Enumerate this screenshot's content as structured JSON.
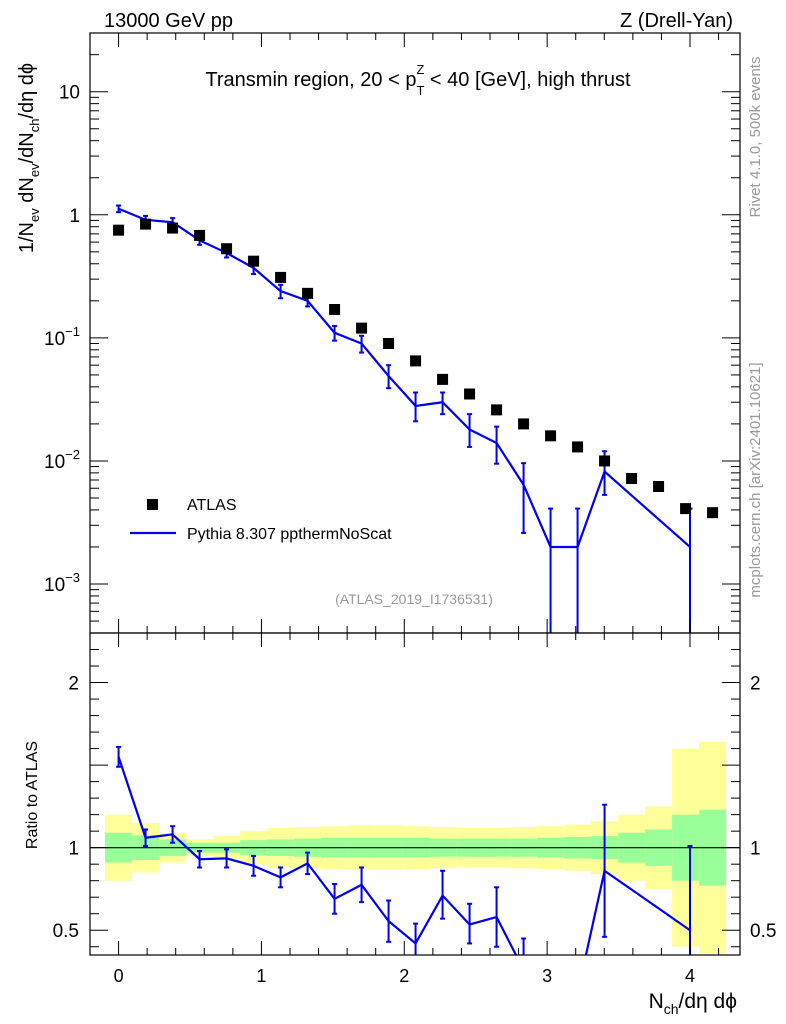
{
  "header": {
    "left": "13000 GeV pp",
    "right": "Z (Drell-Yan)"
  },
  "side": {
    "rivet": "Rivet 4.1.0,  500k events",
    "mcplots": "mcplots.cern.ch [arXiv:2401.10621]"
  },
  "colors": {
    "data": "#000000",
    "mc": "#0000ee",
    "band_inner": "#99ff99",
    "band_outer": "#ffff99",
    "analysis_label": "#999999"
  },
  "chart_data": {
    "type": "line",
    "title": "Transmin region, 20 < p_T^Z < 40 [GeV], high thrust",
    "title_parts": {
      "before": "Transmin region, 20 < p",
      "sub": "T",
      "sup": "Z",
      "after": " < 40 [GeV], high thrust"
    },
    "analysis": "(ATLAS_2019_I1736531)",
    "xlabel": "N_ch/dη dϕ",
    "xlabel_parts": {
      "main": "N",
      "sub": "ch",
      "rest": "/dη dϕ"
    },
    "ylabel": "1/N_ev dN_ev/dN_ch/dη dϕ",
    "ylabel_parts": [
      "1/N",
      "ev",
      " dN",
      "ev",
      "/dN",
      "ch",
      "/dη dϕ"
    ],
    "ratio_ylabel": "Ratio to ATLAS",
    "xlim": [
      -0.2,
      4.35
    ],
    "ylim": [
      0.0004,
      30
    ],
    "ratio_ylim": [
      0.35,
      2.3
    ],
    "xticks": [
      0,
      1,
      2,
      3,
      4
    ],
    "xtick_labels": [
      "0",
      "1",
      "2",
      "3",
      "4"
    ],
    "yticks": [
      {
        "v": 10,
        "base": "10",
        "exp": ""
      },
      {
        "v": 1,
        "base": "1",
        "exp": ""
      },
      {
        "v": 0.1,
        "base": "10",
        "exp": "−1"
      },
      {
        "v": 0.01,
        "base": "10",
        "exp": "−2"
      },
      {
        "v": 0.001,
        "base": "10",
        "exp": "−3"
      }
    ],
    "ratio_yticks": [
      {
        "v": 2,
        "label": "2"
      },
      {
        "v": 1,
        "label": "1"
      },
      {
        "v": 0.5,
        "label": "0.5"
      }
    ],
    "legend": [
      "ATLAS",
      "Pythia 8.307 ppthermNoScat"
    ],
    "legend_position": "lower-left",
    "bin_edges": [
      -0.095,
      0.095,
      0.284,
      0.473,
      0.662,
      0.851,
      1.04,
      1.229,
      1.418,
      1.607,
      1.796,
      1.985,
      2.174,
      2.363,
      2.552,
      2.741,
      2.93,
      3.119,
      3.308,
      3.497,
      3.686,
      3.875,
      4.064,
      4.253
    ],
    "series": [
      {
        "name": "ATLAS",
        "x": [
          0,
          0.189,
          0.378,
          0.567,
          0.756,
          0.945,
          1.134,
          1.323,
          1.512,
          1.701,
          1.89,
          2.079,
          2.268,
          2.457,
          2.646,
          2.835,
          3.024,
          3.213,
          3.402,
          3.591,
          3.78,
          3.969,
          4.158
        ],
        "y": [
          0.75,
          0.84,
          0.78,
          0.68,
          0.53,
          0.42,
          0.31,
          0.23,
          0.17,
          0.12,
          0.09,
          0.065,
          0.046,
          0.035,
          0.026,
          0.02,
          0.016,
          0.013,
          0.01,
          0.0072,
          0.0062,
          0.0041,
          0.0038
        ],
        "band_inner_rel": [
          0.09,
          0.075,
          0.05,
          0.03,
          0.03,
          0.045,
          0.05,
          0.055,
          0.06,
          0.06,
          0.06,
          0.06,
          0.055,
          0.055,
          0.055,
          0.055,
          0.06,
          0.065,
          0.07,
          0.09,
          0.11,
          0.2,
          0.23
        ],
        "band_outer_rel": [
          0.2,
          0.15,
          0.09,
          0.05,
          0.07,
          0.1,
          0.12,
          0.125,
          0.13,
          0.135,
          0.135,
          0.13,
          0.125,
          0.12,
          0.12,
          0.125,
          0.13,
          0.14,
          0.16,
          0.2,
          0.25,
          0.6,
          0.64
        ]
      },
      {
        "name": "Pythia 8.307 ppthermNoScat",
        "x": [
          0,
          0.189,
          0.378,
          0.567,
          0.756,
          0.945,
          1.134,
          1.323,
          1.512,
          1.701,
          1.89,
          2.079,
          2.268,
          2.457,
          2.646,
          2.835,
          3.024,
          3.213,
          3.402,
          4.0
        ],
        "y": [
          1.12,
          0.91,
          0.87,
          0.62,
          0.49,
          0.37,
          0.24,
          0.2,
          0.11,
          0.09,
          0.049,
          0.028,
          0.03,
          0.018,
          0.014,
          0.0064,
          0.002,
          0.002,
          0.0082,
          0.002
        ],
        "y_lo": [
          1.05,
          0.84,
          0.79,
          0.57,
          0.45,
          0.33,
          0.21,
          0.18,
          0.095,
          0.076,
          0.039,
          0.021,
          0.024,
          0.013,
          0.0095,
          0.0026,
          0.0001,
          0.0001,
          0.0053,
          0.0001
        ],
        "y_hi": [
          1.19,
          0.98,
          0.94,
          0.67,
          0.53,
          0.41,
          0.27,
          0.22,
          0.125,
          0.104,
          0.06,
          0.036,
          0.036,
          0.024,
          0.019,
          0.0096,
          0.0041,
          0.0041,
          0.012,
          0.0041
        ],
        "ratio_x": [
          0,
          0.189,
          0.378,
          0.567,
          0.756,
          0.945,
          1.134,
          1.323,
          1.512,
          1.701,
          1.89,
          2.079,
          2.268,
          2.457,
          2.646,
          2.835,
          3.024,
          3.213,
          3.402,
          4.0
        ],
        "ratio": [
          1.55,
          1.06,
          1.08,
          0.93,
          0.935,
          0.89,
          0.82,
          0.905,
          0.69,
          0.775,
          0.555,
          0.42,
          0.71,
          0.535,
          0.58,
          0.26,
          0.12,
          0.12,
          0.86,
          0.5
        ],
        "ratio_lo": [
          1.49,
          1.01,
          1.03,
          0.88,
          0.88,
          0.83,
          0.76,
          0.84,
          0.6,
          0.67,
          0.43,
          0.32,
          0.57,
          0.42,
          0.4,
          0.1,
          0.0,
          0.0,
          0.46,
          0.0
        ],
        "ratio_hi": [
          1.61,
          1.11,
          1.13,
          0.98,
          0.99,
          0.95,
          0.88,
          0.97,
          0.78,
          0.88,
          0.68,
          0.54,
          0.86,
          0.66,
          0.76,
          0.45,
          0.3,
          0.3,
          1.26,
          1.01
        ]
      }
    ]
  }
}
